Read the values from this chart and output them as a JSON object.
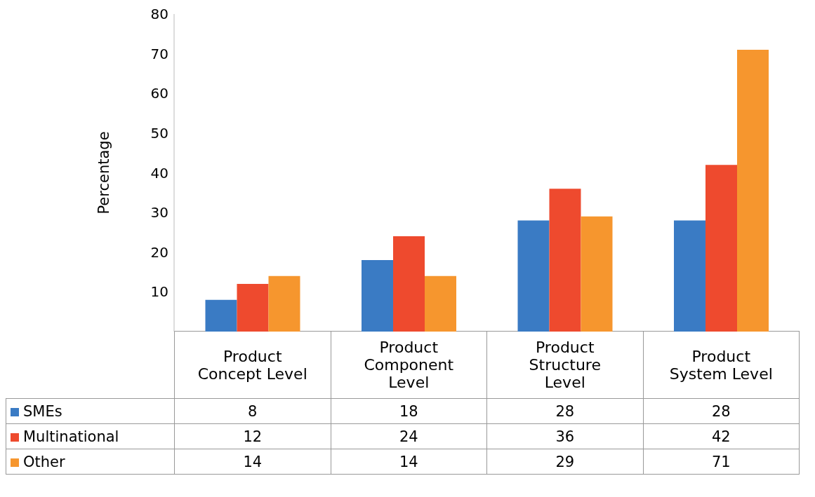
{
  "chart_data": {
    "type": "bar",
    "ylabel": "Percentage",
    "categories": [
      "Product Concept Level",
      "Product Component Level",
      "Product Structure Level",
      "Product System Level"
    ],
    "series": [
      {
        "name": "SMEs",
        "color": "#3a7bc4",
        "values": [
          8,
          18,
          28,
          28
        ]
      },
      {
        "name": "Multinational",
        "color": "#ee4a2e",
        "values": [
          12,
          24,
          36,
          42
        ]
      },
      {
        "name": "Other",
        "color": "#f6962e",
        "values": [
          14,
          14,
          29,
          71
        ]
      }
    ],
    "ylim": [
      0,
      80
    ],
    "yticks": [
      10,
      20,
      30,
      40,
      50,
      60,
      70,
      80
    ],
    "legend": "bottom",
    "data_labels": true
  }
}
